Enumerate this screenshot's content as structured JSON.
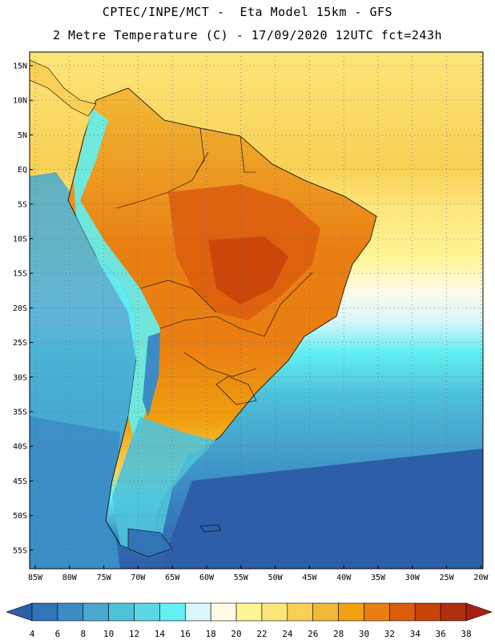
{
  "title": {
    "line1": "CPTEC/INPE/MCT -  Eta Model 15km - GFS",
    "line2": "2 Metre Temperature (C) - 17/09/2020 12UTC fct=243h"
  },
  "map": {
    "lat_labels": [
      "15N",
      "10N",
      "5N",
      "EQ",
      "5S",
      "10S",
      "15S",
      "20S",
      "25S",
      "30S",
      "35S",
      "40S",
      "45S",
      "50S",
      "55S"
    ],
    "lon_labels": [
      "85W",
      "80W",
      "75W",
      "70W",
      "65W",
      "60W",
      "55W",
      "50W",
      "45W",
      "40W",
      "35W",
      "30W",
      "25W",
      "20W"
    ],
    "ocean_color": "#2a6fb0",
    "frame_color": "#000000"
  },
  "colorbar": {
    "ticks": [
      "4",
      "6",
      "8",
      "10",
      "12",
      "14",
      "16",
      "18",
      "20",
      "22",
      "24",
      "26",
      "28",
      "30",
      "32",
      "34",
      "36",
      "38"
    ],
    "colors": [
      "#2d5fa8",
      "#3175b6",
      "#3b8cc5",
      "#48a8d0",
      "#4fc2da",
      "#5cd8e3",
      "#62f0f2",
      "#d9f6fb",
      "#fffbe6",
      "#fdf596",
      "#fde57a",
      "#f8d055",
      "#f1b935",
      "#f0a010",
      "#e97e12",
      "#dc5c0e",
      "#c94209",
      "#ad3010",
      "#a82010"
    ]
  }
}
